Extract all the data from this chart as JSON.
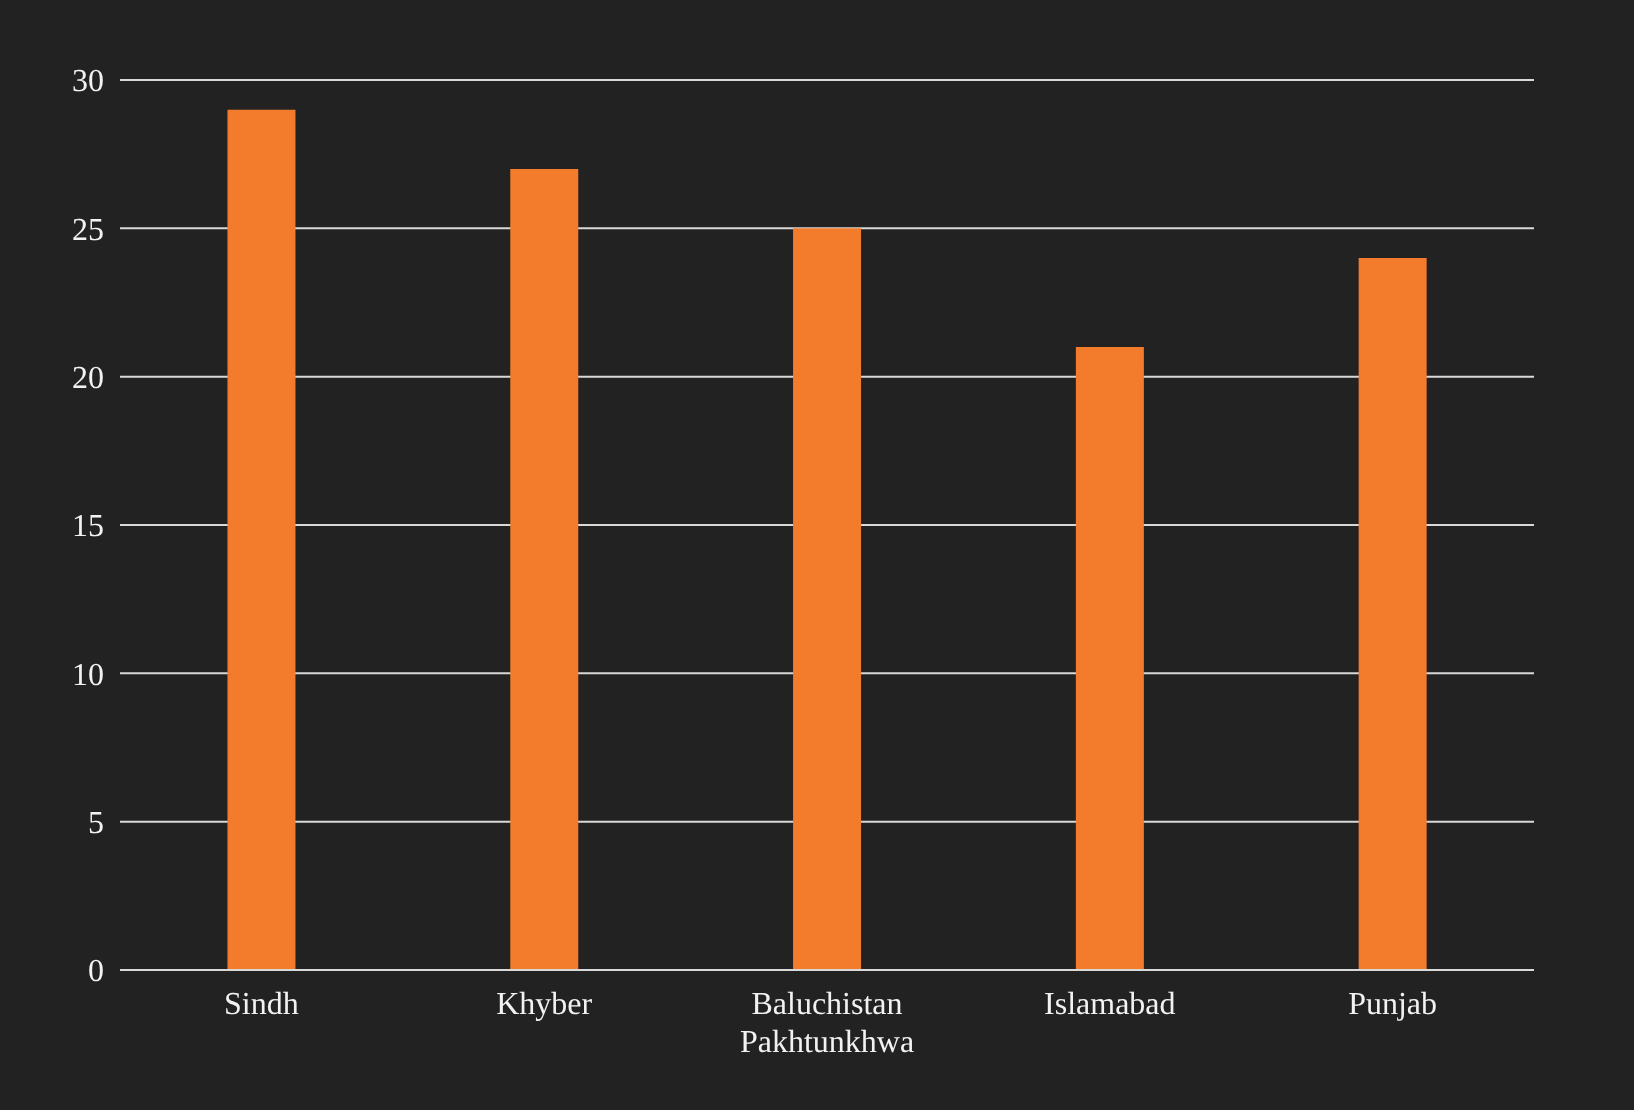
{
  "chart_data": {
    "type": "bar",
    "categories": [
      "Sindh",
      "Khyber",
      "Baluchistan Pakhtunkhwa",
      "Islamabad",
      "Punjab"
    ],
    "values": [
      29,
      27,
      25,
      21,
      24
    ],
    "color": "#f27c2c",
    "ylim": [
      0,
      30
    ],
    "yticks": [
      0,
      5,
      10,
      15,
      20,
      25,
      30
    ],
    "grid": "y"
  }
}
